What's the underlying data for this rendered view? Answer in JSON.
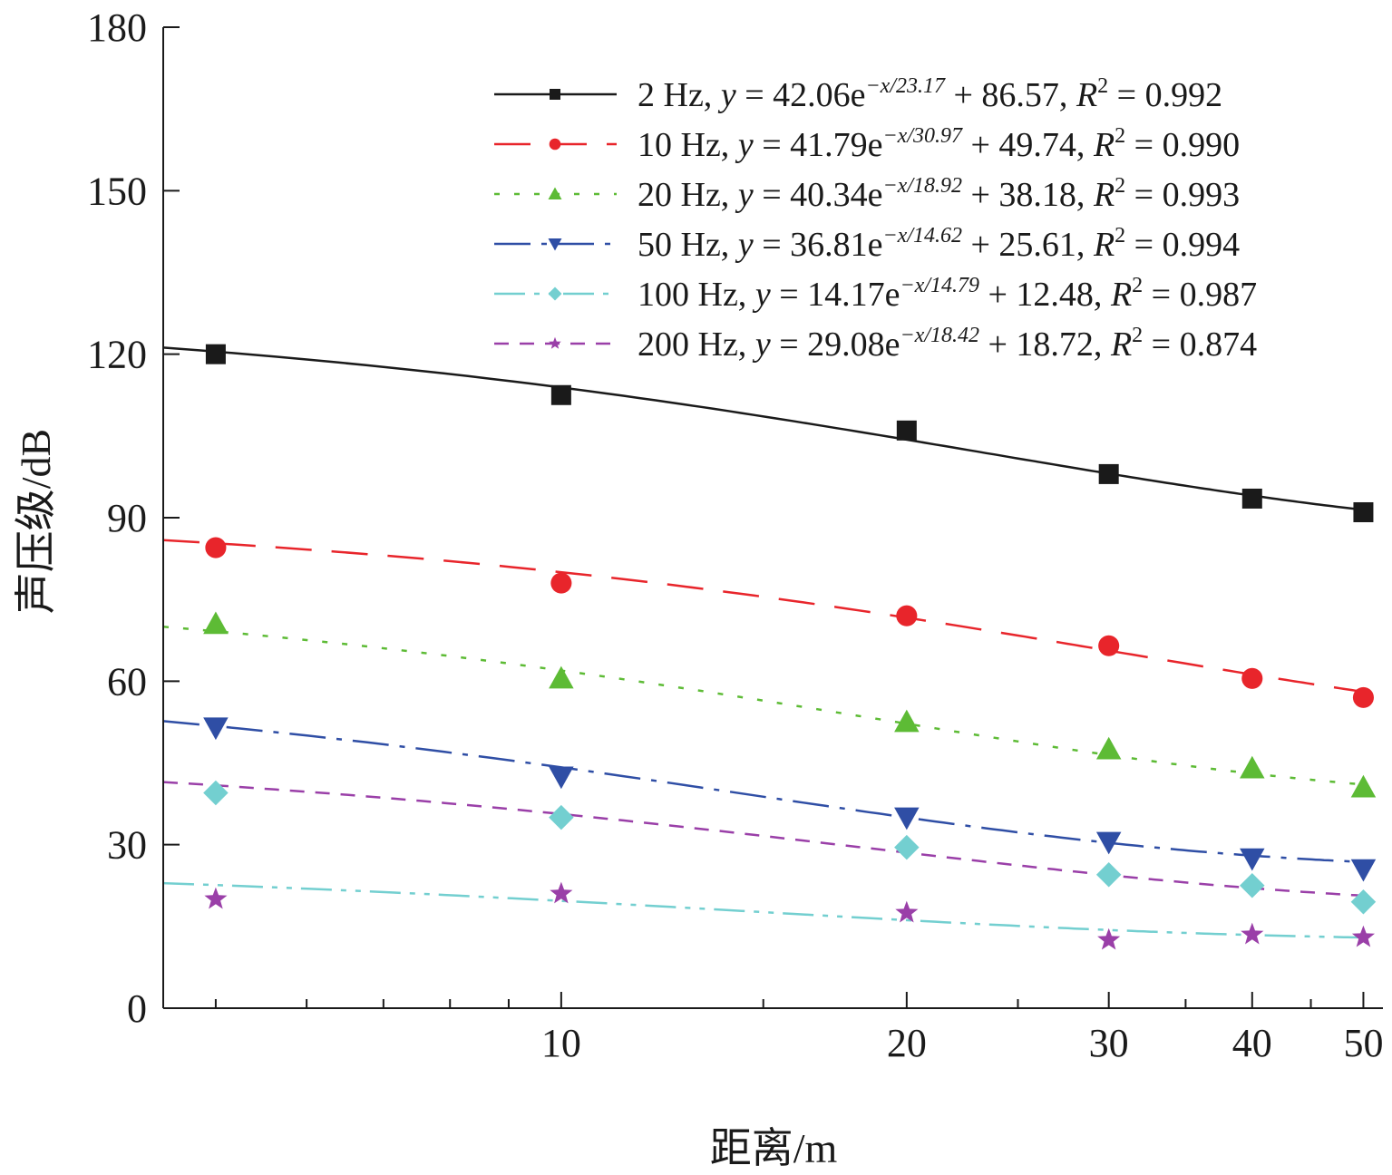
{
  "chart_data": {
    "type": "scatter",
    "xscale": "log",
    "xlabel": "距离/m",
    "ylabel": "声压级/dB",
    "xlim": [
      4.5,
      52
    ],
    "ylim": [
      0,
      180
    ],
    "xticks_major": [
      10,
      20,
      30,
      40,
      50
    ],
    "xtick_labels": [
      "10",
      "20",
      "30",
      "40",
      "50"
    ],
    "xticks_minor": [
      5,
      6,
      7,
      8,
      9,
      15,
      25,
      35,
      45
    ],
    "yticks": [
      0,
      30,
      60,
      90,
      120,
      150,
      180
    ],
    "ytick_labels": [
      "0",
      "30",
      "60",
      "90",
      "120",
      "150",
      "180"
    ],
    "x": [
      5,
      10,
      20,
      30,
      40,
      50
    ],
    "series": [
      {
        "name": "2 Hz",
        "color": "#1a1a1a",
        "marker": "square",
        "dash": "",
        "values": [
          120,
          112.5,
          106,
          98,
          93.5,
          91
        ],
        "fit": {
          "a": 42.06,
          "b": 23.17,
          "c": 86.57
        },
        "legend": {
          "freq": "2 Hz",
          "a": "42.06",
          "exp": "−x/23.17",
          "c": "86.57",
          "r2": "0.992"
        }
      },
      {
        "name": "10 Hz",
        "color": "#e8252b",
        "marker": "circle",
        "dash": "40 22",
        "values": [
          84.5,
          78,
          72,
          66.5,
          60.5,
          57
        ],
        "fit": {
          "a": 41.79,
          "b": 30.97,
          "c": 49.74
        },
        "legend": {
          "freq": "10 Hz",
          "a": "41.79",
          "exp": "−x/30.97",
          "c": "49.74",
          "r2": "0.990"
        }
      },
      {
        "name": "20 Hz",
        "color": "#5dbb35",
        "marker": "triangle-up",
        "dash": "6 16",
        "values": [
          70.5,
          60.5,
          52.5,
          47.5,
          44,
          40.5
        ],
        "fit": {
          "a": 40.34,
          "b": 18.92,
          "c": 38.18
        },
        "legend": {
          "freq": "20 Hz",
          "a": "40.34",
          "exp": "−x/18.92",
          "c": "38.18",
          "r2": "0.993"
        }
      },
      {
        "name": "50 Hz",
        "color": "#2f4ea5",
        "marker": "triangle-down",
        "dash": "40 12 6 12",
        "values": [
          51.5,
          42.5,
          35,
          30.5,
          27.5,
          25.5
        ],
        "fit": {
          "a": 36.81,
          "b": 14.62,
          "c": 25.61
        },
        "legend": {
          "freq": "50 Hz",
          "a": "36.81",
          "exp": "−x/14.62",
          "c": "25.61",
          "r2": "0.994"
        }
      },
      {
        "name": "100 Hz",
        "color": "#73cfd0",
        "marker": "diamond",
        "dash": "34 10 6 10 6 10",
        "values": [
          39.5,
          35,
          29.5,
          24.5,
          22.5,
          19.5
        ],
        "fit": {
          "a": 14.17,
          "b": 14.79,
          "c": 12.48
        },
        "legend": {
          "freq": "100 Hz",
          "a": "14.17",
          "exp": "−x/14.79",
          "c": "12.48",
          "r2": "0.987"
        }
      },
      {
        "name": "200 Hz",
        "color": "#9a3fa8",
        "marker": "star",
        "dash": "16 12",
        "values": [
          20,
          21,
          17.5,
          12.5,
          13.5,
          13
        ],
        "fit": {
          "a": 29.08,
          "b": 18.42,
          "c": 18.72
        },
        "legend": {
          "freq": "200 Hz",
          "a": "29.08",
          "exp": "−x/18.42",
          "c": "18.72",
          "r2": "0.874"
        }
      }
    ]
  }
}
